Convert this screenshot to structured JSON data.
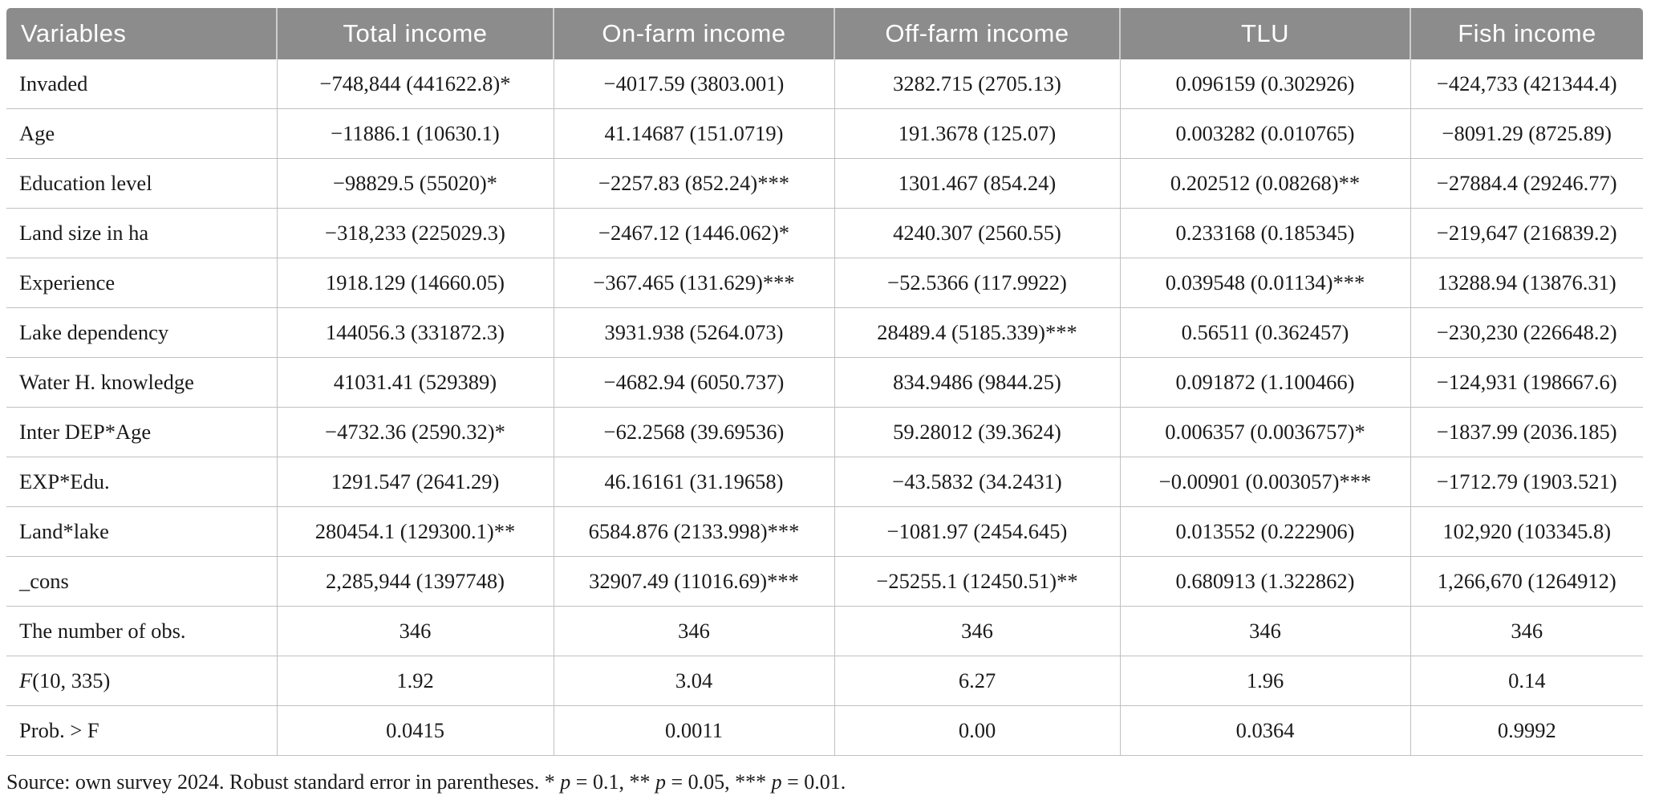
{
  "colors": {
    "page_bg": "#ffffff",
    "header_bg": "#8c8c8c",
    "header_text": "#ffffff",
    "body_text": "#1a1a1a",
    "grid_line": "#c0c0c0",
    "header_divider": "#cdcdcd"
  },
  "table": {
    "columns": [
      "Variables",
      "Total income",
      "On-farm income",
      "Off-farm income",
      "TLU",
      "Fish income"
    ],
    "rows": [
      {
        "label": "Invaded",
        "values": [
          "−748,844 (441622.8)*",
          "−4017.59 (3803.001)",
          "3282.715 (2705.13)",
          "0.096159 (0.302926)",
          "−424,733 (421344.4)"
        ]
      },
      {
        "label": "Age",
        "values": [
          "−11886.1 (10630.1)",
          "41.14687 (151.0719)",
          "191.3678 (125.07)",
          "0.003282 (0.010765)",
          "−8091.29 (8725.89)"
        ]
      },
      {
        "label": "Education level",
        "values": [
          "−98829.5 (55020)*",
          "−2257.83 (852.24)***",
          "1301.467 (854.24)",
          "0.202512 (0.08268)**",
          "−27884.4 (29246.77)"
        ]
      },
      {
        "label": "Land size in ha",
        "values": [
          "−318,233 (225029.3)",
          "−2467.12 (1446.062)*",
          "4240.307 (2560.55)",
          "0.233168 (0.185345)",
          "−219,647 (216839.2)"
        ]
      },
      {
        "label": "Experience",
        "values": [
          "1918.129 (14660.05)",
          "−367.465 (131.629)***",
          "−52.5366 (117.9922)",
          "0.039548 (0.01134)***",
          "13288.94 (13876.31)"
        ]
      },
      {
        "label": "Lake dependency",
        "values": [
          "144056.3 (331872.3)",
          "3931.938 (5264.073)",
          "28489.4 (5185.339)***",
          "0.56511 (0.362457)",
          "−230,230 (226648.2)"
        ]
      },
      {
        "label": "Water H. knowledge",
        "values": [
          "41031.41 (529389)",
          "−4682.94 (6050.737)",
          "834.9486 (9844.25)",
          "0.091872 (1.100466)",
          "−124,931 (198667.6)"
        ]
      },
      {
        "label": "Inter DEP*Age",
        "values": [
          "−4732.36 (2590.32)*",
          "−62.2568 (39.69536)",
          "59.28012 (39.3624)",
          "0.006357 (0.0036757)*",
          "−1837.99 (2036.185)"
        ]
      },
      {
        "label": "EXP*Edu.",
        "values": [
          "1291.547 (2641.29)",
          "46.16161 (31.19658)",
          "−43.5832 (34.2431)",
          "−0.00901 (0.003057)***",
          "−1712.79 (1903.521)"
        ]
      },
      {
        "label": "Land*lake",
        "values": [
          "280454.1 (129300.1)**",
          "6584.876 (2133.998)***",
          "−1081.97 (2454.645)",
          "0.013552 (0.222906)",
          "102,920 (103345.8)"
        ]
      },
      {
        "label": "_cons",
        "values": [
          "2,285,944 (1397748)",
          "32907.49 (11016.69)***",
          "−25255.1 (12450.51)**",
          "0.680913 (1.322862)",
          "1,266,670 (1264912)"
        ]
      },
      {
        "label": "The number of obs.",
        "values": [
          "346",
          "346",
          "346",
          "346",
          "346"
        ]
      },
      {
        "label": "F(10, 335)",
        "italic_first_char": true,
        "values": [
          "1.92",
          "3.04",
          "6.27",
          "1.96",
          "0.14"
        ]
      },
      {
        "label": "Prob. > F",
        "values": [
          "0.0415",
          "0.0011",
          "0.00",
          "0.0364",
          "0.9992"
        ]
      }
    ],
    "footnote": "Source: own survey 2024. Robust standard error in parentheses. * p = 0.1, ** p = 0.05, *** p = 0.01."
  }
}
